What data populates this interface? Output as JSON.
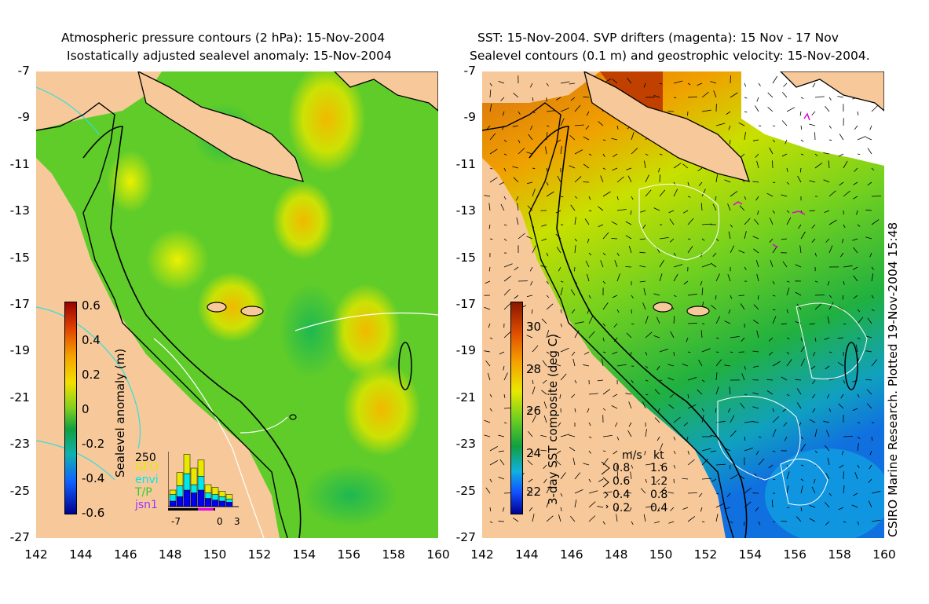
{
  "left_panel": {
    "title_line1": "Atmospheric pressure contours (2 hPa): 15-Nov-2004",
    "title_line2": "Isostatically adjusted sealevel anomaly: 15-Nov-2004",
    "colorbar_label": "Sealevel anomaly (m)",
    "colorbar_ticks": [
      "0.6",
      "0.4",
      "0.2",
      "0",
      "-0.2",
      "-0.4",
      "-0.6"
    ],
    "inset": {
      "count_label": "250",
      "satellites": [
        "GFO",
        "envi",
        "T/P",
        "jsn1"
      ],
      "satellite_colors": [
        "#e8e800",
        "#00e8e8",
        "#33cc33",
        "#9933ff"
      ],
      "x_ticks": [
        "-7",
        "0",
        "3"
      ],
      "bars": [
        {
          "total": 0.3,
          "parts": [
            0.1,
            0.12,
            0.08
          ]
        },
        {
          "total": 0.62,
          "parts": [
            0.18,
            0.2,
            0.24
          ]
        },
        {
          "total": 0.95,
          "parts": [
            0.3,
            0.3,
            0.35
          ]
        },
        {
          "total": 0.7,
          "parts": [
            0.25,
            0.15,
            0.3
          ]
        },
        {
          "total": 0.85,
          "parts": [
            0.3,
            0.25,
            0.3
          ]
        },
        {
          "total": 0.4,
          "parts": [
            0.15,
            0.1,
            0.15
          ]
        },
        {
          "total": 0.35,
          "parts": [
            0.12,
            0.1,
            0.13
          ]
        },
        {
          "total": 0.28,
          "parts": [
            0.1,
            0.08,
            0.1
          ]
        },
        {
          "total": 0.22,
          "parts": [
            0.08,
            0.06,
            0.08
          ]
        }
      ]
    }
  },
  "right_panel": {
    "title_line1": "SST: 15-Nov-2004. SVP drifters (magenta): 15 Nov - 17 Nov",
    "title_line2": "Sealevel contours (0.1 m) and geostrophic velocity: 15-Nov-2004.",
    "colorbar_label": "3-day SST composite (deg C)",
    "colorbar_ticks": [
      "30",
      "28",
      "26",
      "24",
      "22"
    ],
    "velocity_legend": {
      "header_ms": "m/s",
      "header_kt": "kt",
      "rows": [
        {
          "ms": "0.8",
          "kt": "1.6"
        },
        {
          "ms": "0.6",
          "kt": "1.2"
        },
        {
          "ms": "0.4",
          "kt": "0.8"
        },
        {
          "ms": "0.2",
          "kt": "0.4"
        }
      ]
    },
    "credit": "CSIRO Marine Research. Plotted 19-Nov-2004 15:48"
  },
  "axes": {
    "y_ticks": [
      "-7",
      "-9",
      "-11",
      "-13",
      "-15",
      "-17",
      "-19",
      "-21",
      "-23",
      "-25",
      "-27"
    ],
    "x_ticks": [
      "142",
      "144",
      "146",
      "148",
      "150",
      "152",
      "154",
      "156",
      "158",
      "160"
    ],
    "lon_range": [
      142,
      160
    ],
    "lat_range": [
      -27,
      -7
    ]
  },
  "colors": {
    "land": "#f7c99a",
    "coast": "#000000"
  }
}
